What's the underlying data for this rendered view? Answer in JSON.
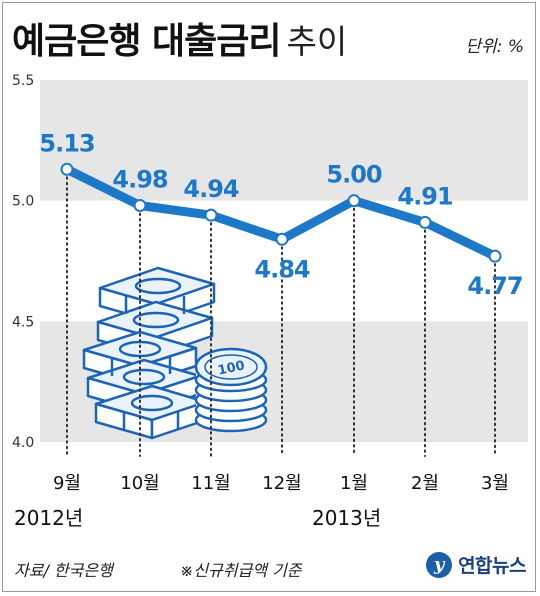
{
  "title": "예금은행 대출금리",
  "subtitle": "추이",
  "unit_label": "단위: %",
  "source": "자료/ 한국은행",
  "note": "※신규취급액 기준",
  "logo_text": "연합뉴스",
  "colors": {
    "line": "#1e78c8",
    "band": "#e6e6e6",
    "frame": "#9a9a9a"
  },
  "chart_data": {
    "type": "line",
    "categories": [
      "9월",
      "10월",
      "11월",
      "12월",
      "1월",
      "2월",
      "3월"
    ],
    "year_labels": [
      {
        "label": "2012년",
        "category_index": 1
      },
      {
        "label": "2013년",
        "category_index": 5
      }
    ],
    "series": [
      {
        "values": [
          5.13,
          4.98,
          4.94,
          4.84,
          5.0,
          4.91,
          4.77
        ]
      }
    ],
    "value_labels": [
      "5.13",
      "4.98",
      "4.94",
      "4.84",
      "5.00",
      "4.91",
      "4.77"
    ],
    "yticks": [
      "4.0",
      "4.5",
      "5.0",
      "5.5"
    ],
    "ylim": [
      4.0,
      5.5
    ],
    "grid": "alternating horizontal bands",
    "illustration": "banknote stacks and 100 coins"
  }
}
